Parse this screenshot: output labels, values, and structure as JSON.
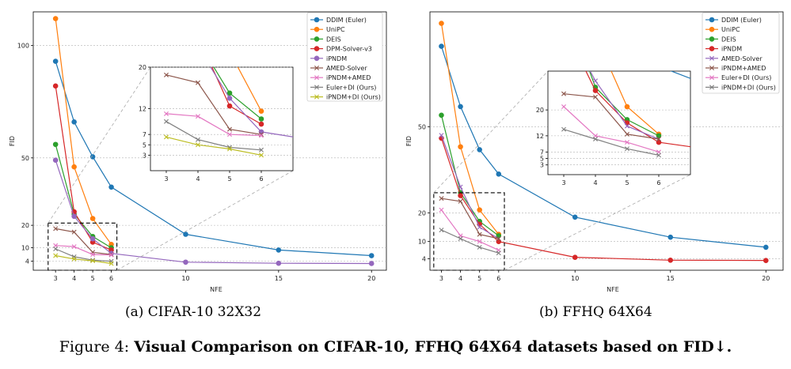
{
  "caption": {
    "prefix": "Figure 4:",
    "text": "Visual Comparison on CIFAR-10, FFHQ 64X64 datasets based on FID↓."
  },
  "chart_data": [
    {
      "type": "line",
      "subcaption": "(a) CIFAR-10 32X32",
      "xlabel": "NFE",
      "ylabel": "FID",
      "x_ticks": [
        3,
        4,
        5,
        6,
        10,
        15,
        20
      ],
      "y_ticks": [
        4,
        10,
        20,
        50,
        100
      ],
      "ylim": [
        0,
        115
      ],
      "grid": "y",
      "legend": "top-right",
      "series": [
        {
          "name": "DDIM (Euler)",
          "color": "#1f77b4",
          "marker": "o",
          "x": [
            3,
            4,
            5,
            6,
            10,
            15,
            20
          ],
          "y": [
            93,
            66,
            50.5,
            37,
            16,
            9,
            6.5
          ]
        },
        {
          "name": "UniPC",
          "color": "#ff7f0e",
          "marker": "o",
          "x": [
            3,
            4,
            5,
            6
          ],
          "y": [
            112,
            46,
            23,
            11.5
          ]
        },
        {
          "name": "DEIS",
          "color": "#2ca02c",
          "marker": "o",
          "x": [
            3,
            4,
            5,
            6
          ],
          "y": [
            56,
            25,
            15,
            10
          ]
        },
        {
          "name": "DPM-Solver-v3",
          "color": "#d62728",
          "marker": "o",
          "x": [
            3,
            4,
            5,
            6
          ],
          "y": [
            82,
            26,
            12.5,
            9
          ]
        },
        {
          "name": "iPNDM",
          "color": "#9467bd",
          "marker": "o",
          "x": [
            3,
            4,
            5,
            6,
            10,
            15,
            20
          ],
          "y": [
            49,
            24,
            14,
            7.5,
            3.6,
            3.1,
            3.0
          ]
        },
        {
          "name": "AMED-Solver",
          "color": "#8c564b",
          "marker": "x",
          "x": [
            3,
            4,
            5,
            6
          ],
          "y": [
            18.5,
            17,
            8,
            7
          ]
        },
        {
          "name": "iPNDM+AMED",
          "color": "#e377c2",
          "marker": "x",
          "x": [
            3,
            4,
            5,
            6
          ],
          "y": [
            11,
            10.5,
            7,
            6.8
          ]
        },
        {
          "name": "Euler+DI (Ours)",
          "color": "#7f7f7f",
          "marker": "x",
          "x": [
            3,
            4,
            5,
            6
          ],
          "y": [
            9.5,
            6,
            4.5,
            4
          ]
        },
        {
          "name": "iPNDM+DI (Ours)",
          "color": "#bcbd22",
          "marker": "x",
          "x": [
            3,
            4,
            5,
            6
          ],
          "y": [
            6.5,
            5,
            4.2,
            3
          ]
        }
      ],
      "inset": {
        "x_ticks": [
          3,
          4,
          5,
          6
        ],
        "y_ticks": [
          3,
          5,
          7,
          12,
          20
        ],
        "xlim": [
          2.5,
          7.0
        ],
        "ylim": [
          0,
          20
        ]
      }
    },
    {
      "type": "line",
      "subcaption": "(b) FFHQ 64X64",
      "xlabel": "NFE",
      "ylabel": "FID",
      "x_ticks": [
        3,
        4,
        5,
        6,
        10,
        15,
        20
      ],
      "y_ticks": [
        4,
        10,
        20,
        50
      ],
      "ylim": [
        0,
        90
      ],
      "grid": "y",
      "legend": "top-right",
      "series": [
        {
          "name": "DDIM (Euler)",
          "color": "#1f77b4",
          "marker": "o",
          "x": [
            3,
            4,
            5,
            6,
            10,
            15,
            20
          ],
          "y": [
            78,
            57,
            42,
            33.5,
            18.5,
            11.5,
            8
          ]
        },
        {
          "name": "UniPC",
          "color": "#ff7f0e",
          "marker": "o",
          "x": [
            3,
            4,
            5,
            6
          ],
          "y": [
            86,
            43,
            21,
            12.5
          ]
        },
        {
          "name": "DEIS",
          "color": "#2ca02c",
          "marker": "o",
          "x": [
            3,
            4,
            5,
            6
          ],
          "y": [
            54,
            27,
            17,
            12
          ]
        },
        {
          "name": "iPNDM",
          "color": "#d62728",
          "marker": "o",
          "x": [
            3,
            4,
            5,
            6,
            10,
            15,
            20
          ],
          "y": [
            46,
            26,
            16,
            10,
            4.5,
            3.5,
            3.4
          ]
        },
        {
          "name": "AMED-Solver",
          "color": "#9467bd",
          "marker": "x",
          "x": [
            3,
            4,
            5,
            6
          ],
          "y": [
            47,
            29,
            15,
            11
          ]
        },
        {
          "name": "iPNDM+AMED",
          "color": "#8c564b",
          "marker": "x",
          "x": [
            3,
            4,
            5,
            6
          ],
          "y": [
            25,
            24,
            12.5,
            11
          ]
        },
        {
          "name": "Euler+DI (Ours)",
          "color": "#e377c2",
          "marker": "x",
          "x": [
            3,
            4,
            5,
            6
          ],
          "y": [
            21,
            12,
            10,
            7
          ]
        },
        {
          "name": "iPNDM+DI (Ours)",
          "color": "#7f7f7f",
          "marker": "x",
          "x": [
            3,
            4,
            5,
            6
          ],
          "y": [
            14,
            11,
            8,
            6
          ]
        }
      ],
      "inset": {
        "x_ticks": [
          3,
          4,
          5,
          6
        ],
        "y_ticks": [
          3,
          5,
          7,
          12,
          20
        ],
        "xlim": [
          2.5,
          7.0
        ],
        "ylim": [
          0,
          32
        ]
      }
    }
  ]
}
